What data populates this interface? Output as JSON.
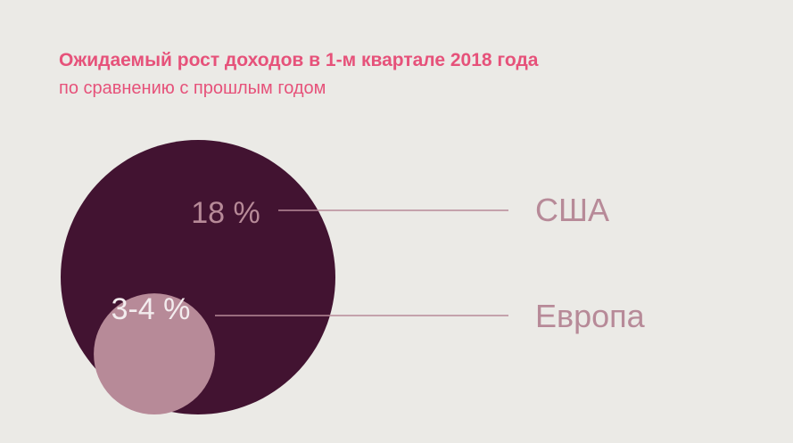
{
  "chart_data": {
    "type": "bubble",
    "title": "Ожидаемый рост доходов в 1-м квартале 2018 года",
    "subtitle": "по сравнению с прошлым годом",
    "unit": "%",
    "series": [
      {
        "name": "США",
        "value_label": "18 %",
        "value": 18,
        "color": "#421331",
        "text_color": "#b78a98"
      },
      {
        "name": "Европа",
        "value_label": "3-4 %",
        "value": 3.5,
        "color": "#b78a98",
        "text_color": "#f3ecee"
      }
    ],
    "leader_color": "#b78a98",
    "category_color": "#b78a98",
    "legend": "right"
  }
}
